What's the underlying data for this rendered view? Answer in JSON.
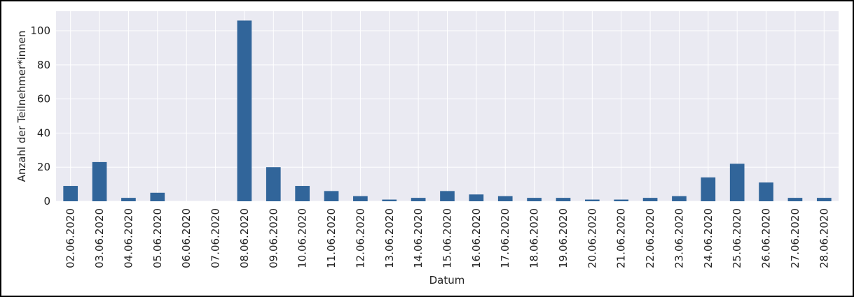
{
  "chart_data": {
    "type": "bar",
    "x_label": "Datum",
    "y_label": "Anzahl der Teilnehmer*innen",
    "categories": [
      "02.06.2020",
      "03.06.2020",
      "04.06.2020",
      "05.06.2020",
      "06.06.2020",
      "07.06.2020",
      "08.06.2020",
      "09.06.2020",
      "10.06.2020",
      "11.06.2020",
      "12.06.2020",
      "13.06.2020",
      "14.06.2020",
      "15.06.2020",
      "16.06.2020",
      "17.06.2020",
      "18.06.2020",
      "19.06.2020",
      "20.06.2020",
      "21.06.2020",
      "22.06.2020",
      "23.06.2020",
      "24.06.2020",
      "25.06.2020",
      "26.06.2020",
      "27.06.2020",
      "28.06.2020"
    ],
    "values": [
      9,
      23,
      2,
      5,
      0,
      0,
      106,
      20,
      9,
      6,
      3,
      1,
      2,
      6,
      4,
      3,
      2,
      2,
      1,
      1,
      2,
      3,
      14,
      22,
      11,
      2,
      2
    ],
    "color": "#31659a",
    "ylim": [
      0,
      111.5
    ],
    "yticks": [
      0,
      20,
      40,
      60,
      80,
      100
    ],
    "grid": true
  }
}
